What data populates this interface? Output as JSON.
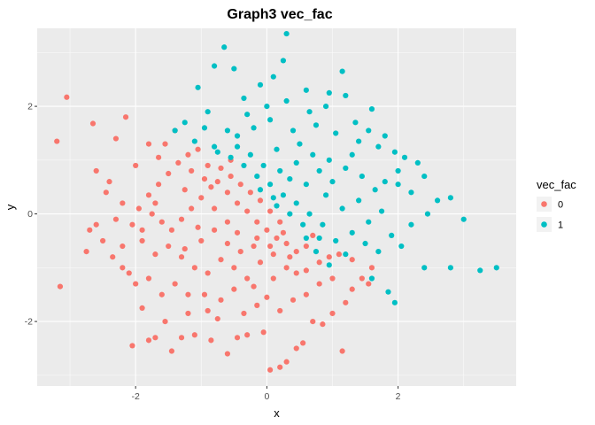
{
  "chart_data": {
    "type": "scatter",
    "title": "Graph3 vec_fac",
    "xlabel": "x",
    "ylabel": "y",
    "xlim": [
      -3.5,
      3.8
    ],
    "ylim": [
      -3.2,
      3.45
    ],
    "x_ticks": [
      -2,
      0,
      2
    ],
    "y_ticks": [
      -2,
      0,
      2
    ],
    "x_tick_labels": [
      "-2",
      "0",
      "2"
    ],
    "y_tick_labels": [
      "-2",
      "0",
      "2"
    ],
    "grid": true,
    "legend": {
      "title": "vec_fac",
      "position": "right",
      "entries": [
        {
          "label": "0",
          "color": "#F8766D"
        },
        {
          "label": "1",
          "color": "#00BFC4"
        }
      ]
    },
    "series": [
      {
        "name": "0",
        "color": "#F8766D",
        "points": [
          [
            -3.05,
            2.17
          ],
          [
            -3.2,
            1.35
          ],
          [
            -3.15,
            -1.35
          ],
          [
            -2.65,
            1.68
          ],
          [
            -2.6,
            0.8
          ],
          [
            -2.4,
            0.6
          ],
          [
            -2.3,
            1.4
          ],
          [
            -2.15,
            1.8
          ],
          [
            -2.7,
            -0.3
          ],
          [
            -2.75,
            -0.7
          ],
          [
            -2.6,
            -0.2
          ],
          [
            -2.5,
            -0.5
          ],
          [
            -2.35,
            -0.8
          ],
          [
            -2.2,
            -0.6
          ],
          [
            -2.1,
            -1.1
          ],
          [
            -2.0,
            -1.3
          ],
          [
            -2.05,
            -2.45
          ],
          [
            -1.9,
            -1.75
          ],
          [
            -1.8,
            -2.35
          ],
          [
            -1.7,
            -2.3
          ],
          [
            -1.55,
            -2.0
          ],
          [
            -1.45,
            -2.55
          ],
          [
            -1.3,
            -2.3
          ],
          [
            -1.2,
            -1.85
          ],
          [
            -1.1,
            -2.25
          ],
          [
            -0.95,
            -1.5
          ],
          [
            -0.85,
            -2.35
          ],
          [
            -0.75,
            -1.95
          ],
          [
            -0.6,
            -2.6
          ],
          [
            -0.45,
            -2.3
          ],
          [
            -0.3,
            -2.25
          ],
          [
            -0.15,
            -1.7
          ],
          [
            -0.05,
            -2.2
          ],
          [
            0.05,
            -2.9
          ],
          [
            0.2,
            -2.85
          ],
          [
            0.3,
            -2.75
          ],
          [
            0.45,
            -2.5
          ],
          [
            0.55,
            -2.4
          ],
          [
            0.7,
            -2.0
          ],
          [
            0.85,
            -2.05
          ],
          [
            1.0,
            -1.85
          ],
          [
            1.15,
            -2.55
          ],
          [
            1.2,
            -1.65
          ],
          [
            1.3,
            -1.4
          ],
          [
            1.45,
            -1.2
          ],
          [
            1.6,
            -1.0
          ],
          [
            1.55,
            -1.3
          ],
          [
            1.3,
            -0.85
          ],
          [
            1.1,
            -0.75
          ],
          [
            0.95,
            -0.8
          ],
          [
            0.8,
            -0.9
          ],
          [
            0.6,
            -1.05
          ],
          [
            0.45,
            -1.1
          ],
          [
            0.3,
            -1.0
          ],
          [
            0.1,
            -1.2
          ],
          [
            -0.1,
            -0.9
          ],
          [
            -0.3,
            -1.2
          ],
          [
            -0.5,
            -1.0
          ],
          [
            -0.7,
            -0.85
          ],
          [
            -0.9,
            -1.1
          ],
          [
            -1.1,
            -1.0
          ],
          [
            -1.3,
            -0.8
          ],
          [
            -1.5,
            -0.6
          ],
          [
            -1.7,
            -0.75
          ],
          [
            -1.9,
            -0.5
          ],
          [
            -2.05,
            -0.2
          ],
          [
            -1.95,
            0.1
          ],
          [
            -1.8,
            0.35
          ],
          [
            -1.65,
            0.55
          ],
          [
            -1.5,
            0.75
          ],
          [
            -1.35,
            0.95
          ],
          [
            -1.2,
            1.1
          ],
          [
            -1.05,
            1.2
          ],
          [
            -0.9,
            0.9
          ],
          [
            -0.75,
            0.6
          ],
          [
            -0.6,
            0.4
          ],
          [
            -0.45,
            0.2
          ],
          [
            -0.3,
            0.05
          ],
          [
            -0.15,
            -0.15
          ],
          [
            0.0,
            -0.3
          ],
          [
            0.15,
            -0.45
          ],
          [
            0.3,
            -0.55
          ],
          [
            0.45,
            -0.7
          ],
          [
            0.6,
            -0.6
          ],
          [
            0.7,
            -0.4
          ],
          [
            0.2,
            -0.15
          ],
          [
            0.05,
            0.05
          ],
          [
            -0.1,
            0.25
          ],
          [
            -0.25,
            0.4
          ],
          [
            -0.4,
            0.55
          ],
          [
            -0.55,
            0.7
          ],
          [
            -0.7,
            0.85
          ],
          [
            -0.85,
            0.5
          ],
          [
            -1.0,
            0.3
          ],
          [
            -1.15,
            0.1
          ],
          [
            -1.3,
            -0.1
          ],
          [
            -1.45,
            -0.3
          ],
          [
            -1.6,
            -0.15
          ],
          [
            -1.75,
            0.0
          ],
          [
            -1.9,
            -0.3
          ],
          [
            -2.2,
            0.2
          ],
          [
            -2.3,
            -0.1
          ],
          [
            -2.45,
            0.4
          ],
          [
            -1.55,
            1.3
          ],
          [
            -1.4,
            1.55
          ],
          [
            -1.65,
            1.05
          ],
          [
            -1.8,
            1.3
          ],
          [
            -2.0,
            0.9
          ],
          [
            -1.25,
            0.45
          ],
          [
            -1.0,
            -0.5
          ],
          [
            -0.8,
            -0.3
          ],
          [
            -0.6,
            -0.55
          ],
          [
            -0.4,
            -0.7
          ],
          [
            -0.2,
            -0.6
          ],
          [
            0.1,
            -0.75
          ],
          [
            0.35,
            -0.8
          ],
          [
            -0.5,
            -1.4
          ],
          [
            -0.7,
            -1.6
          ],
          [
            -0.9,
            -1.8
          ],
          [
            -1.2,
            -1.5
          ],
          [
            -1.4,
            -1.3
          ],
          [
            -1.6,
            -1.5
          ],
          [
            -1.8,
            -1.2
          ],
          [
            -2.2,
            -1.0
          ],
          [
            0.6,
            -1.5
          ],
          [
            0.8,
            -1.3
          ],
          [
            1.0,
            -1.2
          ],
          [
            0.4,
            -1.6
          ],
          [
            0.2,
            -1.8
          ],
          [
            0.0,
            -1.55
          ],
          [
            -0.2,
            -1.35
          ],
          [
            -0.35,
            -1.85
          ],
          [
            -0.6,
            -0.15
          ],
          [
            -0.8,
            0.1
          ],
          [
            -1.05,
            -0.25
          ],
          [
            -1.25,
            -0.65
          ],
          [
            -0.15,
            -0.45
          ],
          [
            0.05,
            -0.6
          ],
          [
            0.25,
            -0.35
          ],
          [
            -0.45,
            -0.35
          ],
          [
            -0.95,
            0.65
          ],
          [
            -1.15,
            0.8
          ],
          [
            -0.55,
            1.0
          ],
          [
            -1.7,
            0.2
          ]
        ]
      },
      {
        "name": "1",
        "color": "#00BFC4",
        "points": [
          [
            0.3,
            3.35
          ],
          [
            -0.65,
            3.1
          ],
          [
            0.25,
            2.85
          ],
          [
            -0.8,
            2.75
          ],
          [
            -0.5,
            2.7
          ],
          [
            0.1,
            2.55
          ],
          [
            1.15,
            2.65
          ],
          [
            -0.1,
            2.4
          ],
          [
            0.6,
            2.3
          ],
          [
            0.95,
            2.25
          ],
          [
            1.2,
            2.2
          ],
          [
            -1.05,
            2.35
          ],
          [
            -0.35,
            2.15
          ],
          [
            0.3,
            2.1
          ],
          [
            1.6,
            1.95
          ],
          [
            -0.9,
            1.9
          ],
          [
            -1.25,
            1.7
          ],
          [
            -1.4,
            1.55
          ],
          [
            -1.1,
            1.35
          ],
          [
            -0.8,
            1.25
          ],
          [
            -0.45,
            1.45
          ],
          [
            -0.2,
            1.6
          ],
          [
            0.05,
            1.75
          ],
          [
            0.4,
            1.55
          ],
          [
            0.75,
            1.65
          ],
          [
            1.05,
            1.5
          ],
          [
            1.4,
            1.35
          ],
          [
            1.7,
            1.25
          ],
          [
            1.95,
            1.15
          ],
          [
            2.1,
            1.05
          ],
          [
            2.3,
            0.95
          ],
          [
            2.0,
            0.8
          ],
          [
            2.4,
            0.7
          ],
          [
            1.8,
            0.6
          ],
          [
            2.2,
            0.4
          ],
          [
            2.6,
            0.25
          ],
          [
            2.8,
            0.3
          ],
          [
            3.0,
            -0.1
          ],
          [
            2.45,
            0.0
          ],
          [
            2.2,
            -0.2
          ],
          [
            1.9,
            -0.4
          ],
          [
            2.05,
            -0.6
          ],
          [
            1.7,
            -0.7
          ],
          [
            2.4,
            -1.0
          ],
          [
            2.8,
            -1.0
          ],
          [
            3.25,
            -1.05
          ],
          [
            3.5,
            -1.0
          ],
          [
            1.6,
            -1.2
          ],
          [
            1.85,
            -1.45
          ],
          [
            1.95,
            -1.65
          ],
          [
            1.5,
            -0.55
          ],
          [
            1.3,
            -0.35
          ],
          [
            1.05,
            -0.5
          ],
          [
            0.85,
            -0.2
          ],
          [
            0.65,
            0.0
          ],
          [
            0.45,
            0.2
          ],
          [
            0.25,
            0.35
          ],
          [
            0.05,
            0.55
          ],
          [
            -0.15,
            0.7
          ],
          [
            -0.35,
            0.9
          ],
          [
            -0.55,
            1.05
          ],
          [
            -0.75,
            1.15
          ],
          [
            0.2,
            0.8
          ],
          [
            0.45,
            0.95
          ],
          [
            0.7,
            1.1
          ],
          [
            0.95,
            1.0
          ],
          [
            1.2,
            0.85
          ],
          [
            1.45,
            0.7
          ],
          [
            1.65,
            0.45
          ],
          [
            1.4,
            0.25
          ],
          [
            1.15,
            0.1
          ],
          [
            0.9,
            0.35
          ],
          [
            0.6,
            0.55
          ],
          [
            0.35,
            0.65
          ],
          [
            0.1,
            0.3
          ],
          [
            -0.1,
            0.45
          ],
          [
            0.55,
            -0.2
          ],
          [
            0.8,
            -0.45
          ],
          [
            1.0,
            0.6
          ],
          [
            1.3,
            1.1
          ],
          [
            0.5,
            1.3
          ],
          [
            0.15,
            1.2
          ],
          [
            -0.25,
            1.1
          ],
          [
            -0.6,
            1.55
          ],
          [
            -0.95,
            1.6
          ],
          [
            -0.3,
            1.85
          ],
          [
            0.0,
            2.0
          ],
          [
            0.65,
            1.9
          ],
          [
            0.9,
            2.0
          ],
          [
            1.35,
            1.7
          ],
          [
            1.55,
            1.55
          ],
          [
            1.8,
            1.45
          ],
          [
            2.0,
            0.55
          ],
          [
            1.75,
            0.05
          ],
          [
            1.55,
            -0.15
          ],
          [
            1.2,
            -0.75
          ],
          [
            0.95,
            -0.95
          ],
          [
            0.75,
            -0.7
          ],
          [
            0.6,
            -0.45
          ],
          [
            0.35,
            0.0
          ],
          [
            0.15,
            0.15
          ],
          [
            -0.05,
            0.9
          ],
          [
            -0.45,
            1.25
          ],
          [
            0.8,
            0.8
          ]
        ]
      }
    ]
  }
}
